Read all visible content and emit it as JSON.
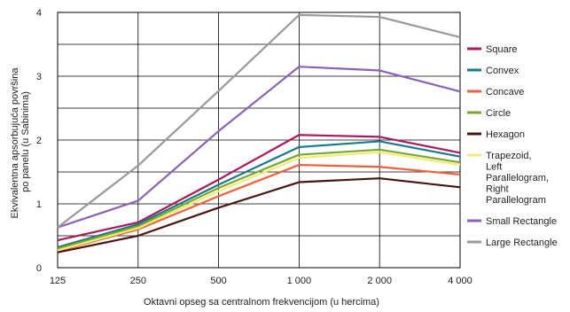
{
  "chart_data": {
    "type": "line",
    "xlabel": "Oktavni opseg sa centralnom frekvencijom (u hercima)",
    "ylabel_lines": [
      "Ekvivalentna apsorbujuća površina",
      "po panelu (u Sabinima)"
    ],
    "categories": [
      "125",
      "250",
      "500",
      "1 000",
      "2 000",
      "4 000"
    ],
    "y_ticks": [
      "0",
      "1",
      "2",
      "3",
      "4"
    ],
    "ylim": [
      0,
      4
    ],
    "grid": true,
    "legend_position": "right",
    "series": [
      {
        "name": "Square",
        "color": "#b0175f",
        "values": [
          0.43,
          0.71,
          1.38,
          2.08,
          2.05,
          1.8
        ]
      },
      {
        "name": "Convex",
        "color": "#137b8c",
        "values": [
          0.32,
          0.68,
          1.3,
          1.89,
          1.98,
          1.74
        ]
      },
      {
        "name": "Concave",
        "color": "#f0603c",
        "values": [
          0.26,
          0.6,
          1.12,
          1.61,
          1.58,
          1.46
        ]
      },
      {
        "name": "Circle",
        "color": "#79a832",
        "values": [
          0.3,
          0.65,
          1.25,
          1.77,
          1.85,
          1.65
        ]
      },
      {
        "name": "Hexagon",
        "color": "#4a1412",
        "values": [
          0.24,
          0.5,
          0.94,
          1.34,
          1.4,
          1.26
        ]
      },
      {
        "name_lines": [
          "Trapezoid,",
          "Left",
          "Parallelogram,",
          "Right",
          "Parallelogram"
        ],
        "color": "#f2ec72",
        "values": [
          0.27,
          0.62,
          1.2,
          1.72,
          1.81,
          1.61
        ]
      },
      {
        "name": "Small Rectangle",
        "color": "#8a60b8",
        "values": [
          0.63,
          1.05,
          2.14,
          3.15,
          3.09,
          2.76
        ]
      },
      {
        "name": "Large Rectangle",
        "color": "#999999",
        "values": [
          0.63,
          1.6,
          2.77,
          3.96,
          3.93,
          3.61
        ]
      }
    ]
  }
}
